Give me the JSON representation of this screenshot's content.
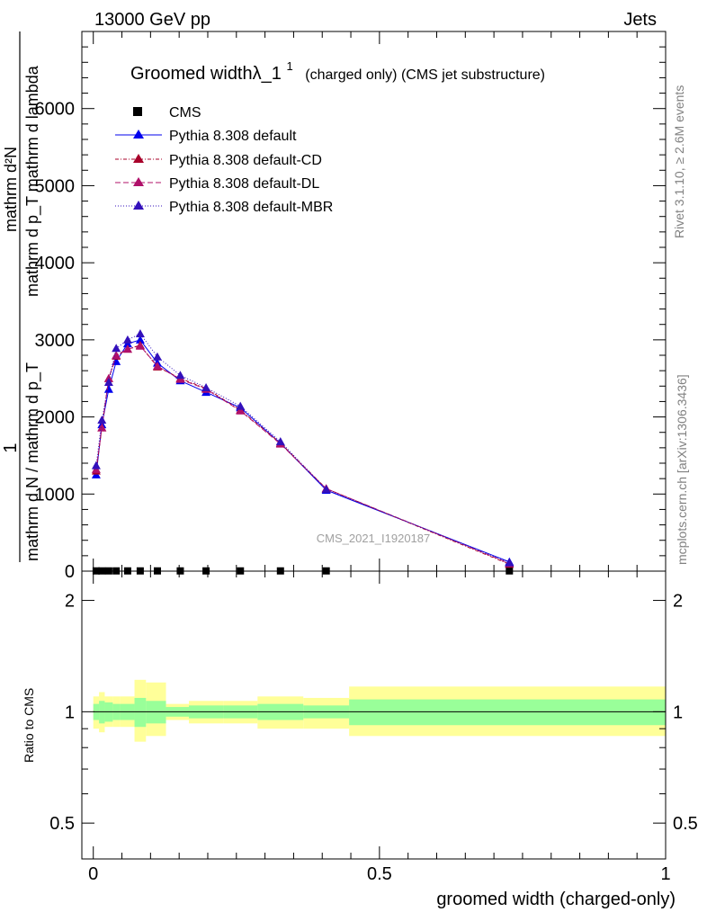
{
  "header": {
    "energy": "13000 GeV pp",
    "category": "Jets"
  },
  "plot_title": {
    "main": "Groomed widthλ_1",
    "sup": "1",
    "suffix": "(charged only) (CMS jet substructure)"
  },
  "watermark": "CMS_2021_I1920187",
  "side_labels": {
    "rivet": "Rivet 3.1.10, ≥ 2.6M events",
    "mcplots": "mcplots.cern.ch [arXiv:1306.3436]"
  },
  "y_axis_label": {
    "numerator": "1",
    "denominator": "mathrm d N / mathrm d p_T",
    "overlap_a": "mathrm d²N",
    "overlap_b": "mathrm d p_T mathrm d lambda"
  },
  "ratio_ylabel": "Ratio to CMS",
  "x_axis_label": "groomed width (charged-only)",
  "legend": {
    "cms": "CMS",
    "default": "Pythia 8.308 default",
    "cd": "Pythia 8.308 default-CD",
    "dl": "Pythia 8.308 default-DL",
    "mbr": "Pythia 8.308 default-MBR"
  },
  "colors": {
    "default": "#0000ee",
    "cd": "#a8002a",
    "dl": "#b0106a",
    "mbr": "#3310bb",
    "band_inner": "#99ff99",
    "band_outer": "#ffff99",
    "side_text": "#808080"
  },
  "chart_data": {
    "type": "line",
    "x": [
      0.005,
      0.015,
      0.027,
      0.04,
      0.06,
      0.082,
      0.112,
      0.152,
      0.197,
      0.257,
      0.327,
      0.407,
      0.727
    ],
    "series": [
      {
        "name": "CMS",
        "values": [
          3,
          3,
          3,
          3,
          3,
          3,
          3,
          3,
          3,
          3,
          3,
          3,
          3
        ]
      },
      {
        "name": "Pythia 8.308 default",
        "values": [
          1250,
          1900,
          2360,
          2720,
          2950,
          3000,
          2700,
          2470,
          2320,
          2120,
          1660,
          1050,
          120
        ]
      },
      {
        "name": "Pythia 8.308 default-CD",
        "values": [
          1300,
          1860,
          2500,
          2790,
          2880,
          2930,
          2650,
          2500,
          2370,
          2090,
          1660,
          1070,
          90
        ]
      },
      {
        "name": "Pythia 8.308 default-DL",
        "values": [
          1320,
          1860,
          2500,
          2800,
          2880,
          2920,
          2660,
          2490,
          2360,
          2080,
          1650,
          1070,
          100
        ]
      },
      {
        "name": "Pythia 8.308 default-MBR",
        "values": [
          1370,
          1960,
          2450,
          2890,
          3000,
          3080,
          2780,
          2540,
          2380,
          2140,
          1680,
          1060,
          110
        ]
      }
    ],
    "xlim": [
      -0.02,
      1.0
    ],
    "ylim": [
      0,
      7000
    ],
    "y_ticks": [
      0,
      1000,
      2000,
      3000,
      4000,
      5000,
      6000
    ],
    "y_tick_labels": [
      "0",
      "1000",
      "2000",
      "3000",
      "4000",
      "5000",
      "6000"
    ],
    "x_ticks": [
      0,
      0.5,
      1
    ],
    "x_tick_labels": [
      "0",
      "0.5",
      "1"
    ],
    "ratio": {
      "ylim_log": [
        0.4,
        2.4
      ],
      "y_ticks": [
        0.5,
        1,
        2
      ],
      "y_tick_labels": [
        "0.5",
        "1",
        "2"
      ],
      "bins": [
        0.0,
        0.01,
        0.02,
        0.034,
        0.047,
        0.072,
        0.092,
        0.127,
        0.167,
        0.227,
        0.287,
        0.367,
        0.447,
        1.0
      ],
      "inner_lo": [
        0.95,
        0.93,
        0.94,
        0.95,
        0.95,
        0.91,
        0.93,
        0.97,
        0.96,
        0.96,
        0.95,
        0.96,
        0.92
      ],
      "inner_hi": [
        1.05,
        1.07,
        1.06,
        1.05,
        1.05,
        1.09,
        1.07,
        1.03,
        1.04,
        1.04,
        1.05,
        1.04,
        1.08
      ],
      "outer_lo": [
        0.9,
        0.88,
        0.91,
        0.91,
        0.91,
        0.83,
        0.86,
        0.95,
        0.93,
        0.93,
        0.9,
        0.9,
        0.86
      ],
      "outer_hi": [
        1.1,
        1.13,
        1.1,
        1.1,
        1.1,
        1.22,
        1.2,
        1.05,
        1.07,
        1.07,
        1.1,
        1.09,
        1.17
      ]
    }
  }
}
